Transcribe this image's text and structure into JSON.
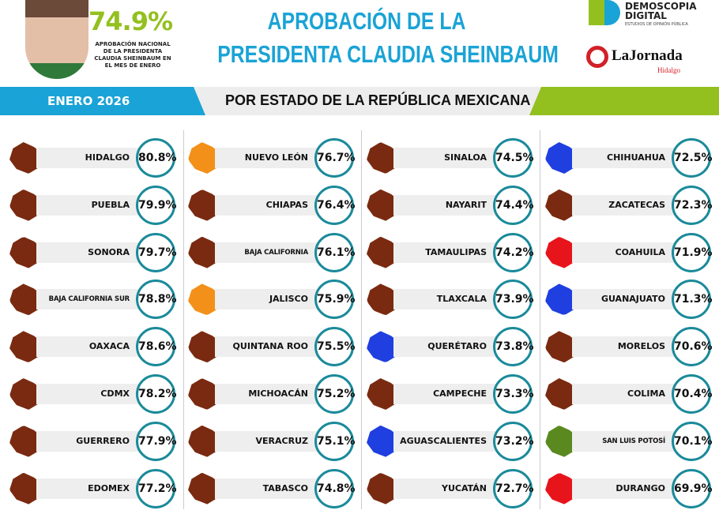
{
  "header": {
    "national_pct": "74.9%",
    "national_label": "APROBACIÓN NACIONAL DE LA PRESIDENTA CLAUDIA SHEINBAUM EN EL MES DE ENERO",
    "title_line1": "APROBACIÓN DE LA",
    "title_line2": "PRESIDENTA CLAUDIA SHEINBAUM",
    "month": "ENERO 2026",
    "subtitle": "POR ESTADO DE LA REPÚBLICA MEXICANA"
  },
  "logos": {
    "demoscopia_1": "DEMOSCOPIA",
    "demoscopia_2": "DIGITAL",
    "demoscopia_tag": "ESTUDIOS DE OPINIÓN PÚBLICA",
    "jornada": "LaJornada",
    "jornada_sub": "Hidalgo"
  },
  "colors": {
    "brand_blue": "#1aa3d6",
    "brand_green": "#93c01f",
    "circle_border": "#1a8a9a",
    "map_default": "#7a2a10"
  },
  "columns": [
    [
      {
        "state": "HIDALGO",
        "pct": "80.8%",
        "color": "#7a2a10"
      },
      {
        "state": "PUEBLA",
        "pct": "79.9%",
        "color": "#7a2a10"
      },
      {
        "state": "SONORA",
        "pct": "79.7%",
        "color": "#7a2a10"
      },
      {
        "state": "BAJA CALIFORNIA SUR",
        "pct": "78.8%",
        "color": "#7a2a10"
      },
      {
        "state": "OAXACA",
        "pct": "78.6%",
        "color": "#7a2a10"
      },
      {
        "state": "CDMX",
        "pct": "78.2%",
        "color": "#7a2a10"
      },
      {
        "state": "GUERRERO",
        "pct": "77.9%",
        "color": "#7a2a10"
      },
      {
        "state": "EDOMEX",
        "pct": "77.2%",
        "color": "#7a2a10"
      }
    ],
    [
      {
        "state": "NUEVO LEÓN",
        "pct": "76.7%",
        "color": "#f39019"
      },
      {
        "state": "CHIAPAS",
        "pct": "76.4%",
        "color": "#7a2a10"
      },
      {
        "state": "BAJA CALIFORNIA",
        "pct": "76.1%",
        "color": "#7a2a10"
      },
      {
        "state": "JALISCO",
        "pct": "75.9%",
        "color": "#f39019"
      },
      {
        "state": "QUINTANA ROO",
        "pct": "75.5%",
        "color": "#7a2a10"
      },
      {
        "state": "MICHOACÁN",
        "pct": "75.2%",
        "color": "#7a2a10"
      },
      {
        "state": "VERACRUZ",
        "pct": "75.1%",
        "color": "#7a2a10"
      },
      {
        "state": "TABASCO",
        "pct": "74.8%",
        "color": "#7a2a10"
      }
    ],
    [
      {
        "state": "SINALOA",
        "pct": "74.5%",
        "color": "#7a2a10"
      },
      {
        "state": "NAYARIT",
        "pct": "74.4%",
        "color": "#7a2a10"
      },
      {
        "state": "TAMAULIPAS",
        "pct": "74.2%",
        "color": "#7a2a10"
      },
      {
        "state": "TLAXCALA",
        "pct": "73.9%",
        "color": "#7a2a10"
      },
      {
        "state": "QUERÉTARO",
        "pct": "73.8%",
        "color": "#1f3fe0"
      },
      {
        "state": "CAMPECHE",
        "pct": "73.3%",
        "color": "#7a2a10"
      },
      {
        "state": "AGUASCALIENTES",
        "pct": "73.2%",
        "color": "#1f3fe0"
      },
      {
        "state": "YUCATÁN",
        "pct": "72.7%",
        "color": "#7a2a10"
      }
    ],
    [
      {
        "state": "CHIHUAHUA",
        "pct": "72.5%",
        "color": "#1f3fe0"
      },
      {
        "state": "ZACATECAS",
        "pct": "72.3%",
        "color": "#7a2a10"
      },
      {
        "state": "COAHUILA",
        "pct": "71.9%",
        "color": "#e8141c"
      },
      {
        "state": "GUANAJUATO",
        "pct": "71.3%",
        "color": "#1f3fe0"
      },
      {
        "state": "MORELOS",
        "pct": "70.6%",
        "color": "#7a2a10"
      },
      {
        "state": "COLIMA",
        "pct": "70.4%",
        "color": "#7a2a10"
      },
      {
        "state": "SAN LUIS POTOSÍ",
        "pct": "70.1%",
        "color": "#5a8a1f"
      },
      {
        "state": "DURANGO",
        "pct": "69.9%",
        "color": "#e8141c"
      }
    ]
  ]
}
